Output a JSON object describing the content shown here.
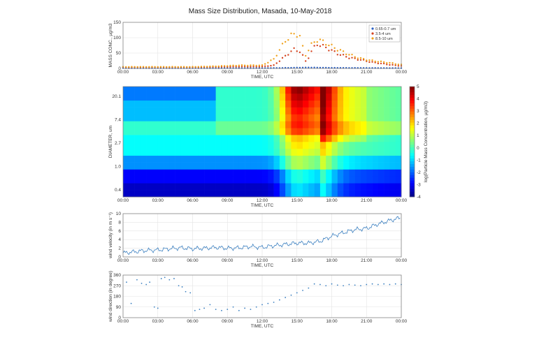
{
  "title": "Mass Size Distribution, Masada, 10-May-2018",
  "xlabel": "TIME, UTC",
  "x_ticks": [
    "00:00",
    "03:00",
    "06:00",
    "09:00",
    "12:00",
    "15:00",
    "18:00",
    "21:00",
    "00:00"
  ],
  "chart_data": [
    {
      "type": "scatter",
      "ylabel": "MASS CONC., µg/m3",
      "xlabel": "TIME, UTC",
      "x_unit": "hours UTC",
      "ylim": [
        0,
        150
      ],
      "y_ticks": [
        0,
        50,
        100,
        150
      ],
      "grid": true,
      "legend_position": "top-right",
      "series": [
        {
          "name": "0.65-0.7 um",
          "color": "#2a5fc4",
          "points": [
            [
              0,
              1
            ],
            [
              3,
              1
            ],
            [
              6,
              1
            ],
            [
              9,
              1
            ],
            [
              12,
              1
            ],
            [
              13.5,
              1.5
            ],
            [
              15,
              2.5
            ],
            [
              16,
              3
            ],
            [
              17,
              2.5
            ],
            [
              18,
              2
            ],
            [
              21,
              1.5
            ],
            [
              24,
              1
            ]
          ]
        },
        {
          "name": "3.5-4 um",
          "color": "#d4421e",
          "points": [
            [
              0,
              4
            ],
            [
              3,
              4
            ],
            [
              6,
              4
            ],
            [
              8,
              5
            ],
            [
              10,
              6
            ],
            [
              12,
              6
            ],
            [
              13,
              10
            ],
            [
              14,
              40
            ],
            [
              14.7,
              62
            ],
            [
              15.3,
              55
            ],
            [
              15.8,
              20
            ],
            [
              16.2,
              52
            ],
            [
              16.7,
              80
            ],
            [
              17.5,
              68
            ],
            [
              18.5,
              48
            ],
            [
              19.5,
              35
            ],
            [
              20.5,
              28
            ],
            [
              21.5,
              20
            ],
            [
              23,
              12
            ],
            [
              24,
              8
            ]
          ]
        },
        {
          "name": "8.5-10 um",
          "color": "#f0a21c",
          "points": [
            [
              0,
              5
            ],
            [
              3,
              5
            ],
            [
              6,
              5
            ],
            [
              8,
              7
            ],
            [
              10,
              10
            ],
            [
              12,
              10
            ],
            [
              13,
              30
            ],
            [
              14,
              90
            ],
            [
              14.6,
              110
            ],
            [
              15.2,
              112
            ],
            [
              15.7,
              40
            ],
            [
              16.2,
              75
            ],
            [
              16.8,
              95
            ],
            [
              17.5,
              82
            ],
            [
              18.5,
              62
            ],
            [
              19.5,
              45
            ],
            [
              20.5,
              32
            ],
            [
              21.5,
              25
            ],
            [
              23,
              18
            ],
            [
              24,
              12
            ]
          ]
        }
      ]
    },
    {
      "type": "heatmap",
      "ylabel": "DIAMETER, um",
      "xlabel": "TIME, UTC",
      "y_scale": "log",
      "y_ticks": [
        "0.4",
        "1.0",
        "2.7",
        "7.4",
        "20.1"
      ],
      "colorbar_label": "log(Particle Mass Concentration, µg/m3)",
      "colorbar_ticks": [
        -4,
        -3,
        -2,
        -1,
        0,
        1,
        2,
        3,
        4,
        5
      ],
      "zlim": [
        -4,
        5
      ],
      "colorscale": "jet"
    },
    {
      "type": "line",
      "ylabel": "wind velocity (in m s⁻¹)",
      "xlabel": "TIME, UTC",
      "ylim": [
        0,
        10
      ],
      "y_ticks": [
        0,
        2,
        4,
        6,
        8,
        10
      ],
      "grid": true,
      "color": "#3a7fc0",
      "points": [
        [
          0,
          0.9
        ],
        [
          1,
          1.2
        ],
        [
          2,
          1.5
        ],
        [
          3,
          1.6
        ],
        [
          4,
          1.9
        ],
        [
          5,
          2.1
        ],
        [
          6,
          1.9
        ],
        [
          7,
          2.0
        ],
        [
          8,
          2.2
        ],
        [
          9,
          2.0
        ],
        [
          10,
          2.1
        ],
        [
          11,
          2.4
        ],
        [
          12,
          2.2
        ],
        [
          13,
          2.6
        ],
        [
          14,
          2.9
        ],
        [
          15,
          3.2
        ],
        [
          16,
          3.2
        ],
        [
          17,
          3.6
        ],
        [
          18,
          4.8
        ],
        [
          19,
          5.6
        ],
        [
          20,
          6.3
        ],
        [
          21,
          6.6
        ],
        [
          22,
          7.6
        ],
        [
          23,
          8.4
        ],
        [
          24,
          9.1
        ]
      ]
    },
    {
      "type": "scatter",
      "ylabel": "wind direction (in degree)",
      "xlabel": "TIME, UTC",
      "ylim": [
        0,
        360
      ],
      "y_ticks": [
        0,
        90,
        180,
        270,
        360
      ],
      "grid": true,
      "color": "#3a7fc0",
      "points": [
        [
          0.3,
          300
        ],
        [
          0.7,
          120
        ],
        [
          1.2,
          320
        ],
        [
          1.6,
          290
        ],
        [
          2.0,
          280
        ],
        [
          2.3,
          300
        ],
        [
          2.7,
          90
        ],
        [
          3.0,
          80
        ],
        [
          3.3,
          330
        ],
        [
          3.6,
          340
        ],
        [
          4.0,
          320
        ],
        [
          4.4,
          330
        ],
        [
          4.8,
          270
        ],
        [
          5.1,
          260
        ],
        [
          5.4,
          220
        ],
        [
          5.8,
          210
        ],
        [
          6.2,
          60
        ],
        [
          6.6,
          70
        ],
        [
          7.0,
          80
        ],
        [
          7.5,
          110
        ],
        [
          8.0,
          70
        ],
        [
          8.5,
          60
        ],
        [
          9.0,
          70
        ],
        [
          9.5,
          90
        ],
        [
          10.0,
          60
        ],
        [
          10.5,
          80
        ],
        [
          11.0,
          70
        ],
        [
          11.5,
          90
        ],
        [
          12.0,
          110
        ],
        [
          12.5,
          120
        ],
        [
          13.0,
          130
        ],
        [
          13.5,
          150
        ],
        [
          14.0,
          170
        ],
        [
          14.5,
          190
        ],
        [
          15.0,
          210
        ],
        [
          15.5,
          230
        ],
        [
          16.0,
          250
        ],
        [
          16.5,
          285
        ],
        [
          17.0,
          280
        ],
        [
          17.5,
          270
        ],
        [
          18.0,
          285
        ],
        [
          18.5,
          275
        ],
        [
          19.0,
          270
        ],
        [
          19.5,
          280
        ],
        [
          20.0,
          275
        ],
        [
          20.5,
          270
        ],
        [
          21.0,
          280
        ],
        [
          21.5,
          285
        ],
        [
          22.0,
          280
        ],
        [
          22.5,
          285
        ],
        [
          23.0,
          280
        ],
        [
          23.5,
          285
        ],
        [
          24.0,
          280
        ]
      ]
    }
  ]
}
